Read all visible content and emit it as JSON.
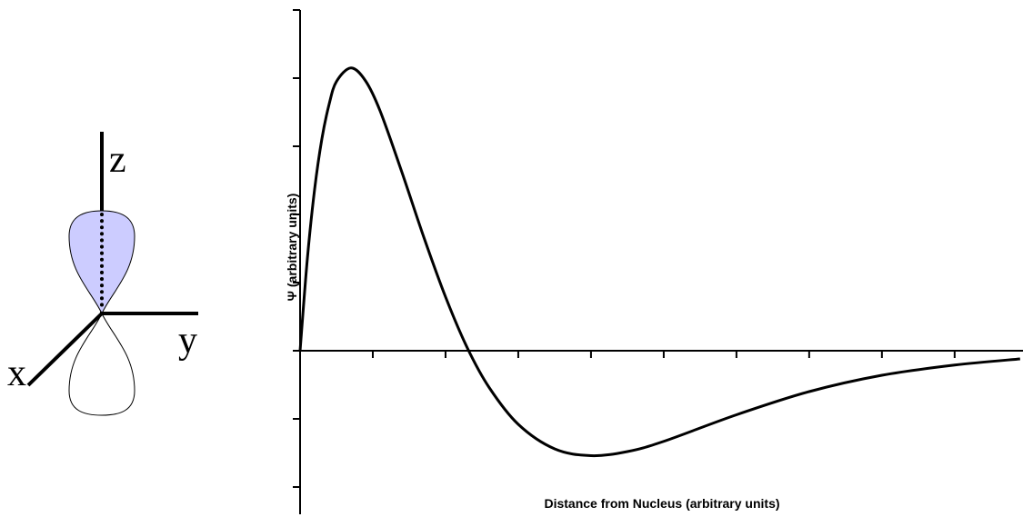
{
  "diagram": {
    "axis_labels": [
      "z",
      "y",
      "x"
    ]
  },
  "chart_data": {
    "type": "line",
    "xlabel": "Distance from Nucleus (arbitrary units)",
    "ylabel": "Ψ (arbitrary units)",
    "x": [
      0,
      0.1,
      0.2,
      0.3,
      0.4,
      0.5,
      0.7,
      0.9,
      1.1,
      1.4,
      1.7,
      2.0,
      2.3,
      2.6,
      3.0,
      3.5,
      4.0,
      4.5,
      5,
      6,
      7,
      8,
      9,
      9.9
    ],
    "values": [
      0,
      1.35,
      2.37,
      3.11,
      3.62,
      3.95,
      4.15,
      3.96,
      3.52,
      2.62,
      1.67,
      0.79,
      0.04,
      -0.54,
      -1.08,
      -1.44,
      -1.54,
      -1.48,
      -1.33,
      -0.94,
      -0.6,
      -0.36,
      -0.21,
      -0.12
    ],
    "color": "#000000",
    "xlim": [
      0,
      9.94
    ],
    "ylim": [
      -2.4,
      5
    ],
    "xticks": [
      1,
      2,
      3,
      4,
      5,
      6,
      7,
      8,
      9
    ],
    "yticks": [
      -2,
      -1,
      0,
      1,
      2,
      3,
      4,
      5
    ]
  }
}
